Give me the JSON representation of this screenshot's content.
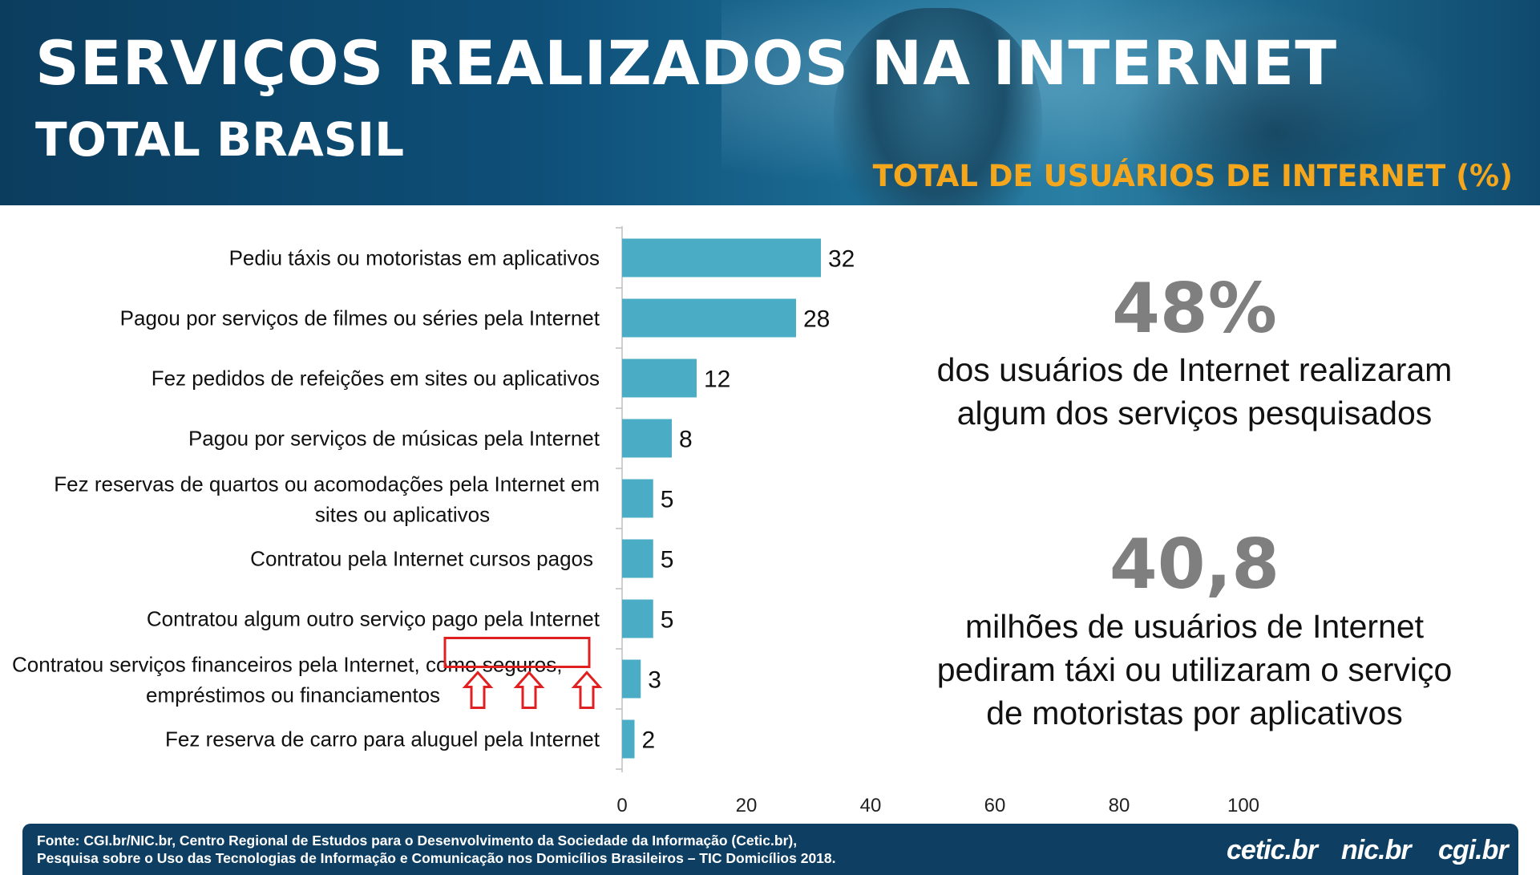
{
  "header": {
    "title": "SERVIÇOS REALIZADOS NA INTERNET",
    "subtitle": "TOTAL BRASIL",
    "chart_label": "TOTAL DE USUÁRIOS DE INTERNET (%)"
  },
  "chart_data": {
    "type": "bar",
    "orientation": "horizontal",
    "title": "",
    "xlabel": "",
    "ylabel": "",
    "xlim": [
      0,
      100
    ],
    "xticks": [
      0,
      20,
      40,
      60,
      80,
      100
    ],
    "categories": [
      "Pediu táxis ou motoristas em aplicativos",
      "Pagou por serviços de filmes ou séries pela Internet",
      "Fez pedidos de refeições em sites ou aplicativos",
      "Pagou por serviços de músicas pela Internet",
      "Fez reservas de quartos ou acomodações pela Internet em sites ou aplicativos",
      "Contratou pela Internet cursos pagos",
      "Contratou algum outro serviço pago pela Internet",
      "Contratou serviços financeiros pela Internet, como seguros, empréstimos ou financiamentos",
      "Fez reserva de carro para aluguel pela Internet"
    ],
    "values": [
      32,
      28,
      12,
      8,
      5,
      5,
      5,
      3,
      2
    ],
    "bar_color": "#4bacc6",
    "highlight": "como seguros",
    "highlight_color": "#e02020"
  },
  "stats": [
    {
      "value": "48%",
      "text_lines": [
        "dos usuários de Internet realizaram",
        "algum dos serviços pesquisados"
      ]
    },
    {
      "value": "40,8",
      "text_lines": [
        "milhões de usuários de Internet",
        "pediram táxi ou utilizaram o serviço",
        "de motoristas por aplicativos"
      ]
    }
  ],
  "footer": {
    "source_lines": [
      "Fonte: CGI.br/NIC.br, Centro Regional de Estudos para o Desenvolvimento da Sociedade da Informação (Cetic.br),",
      "Pesquisa sobre o Uso das Tecnologias de Informação e Comunicação nos Domicílios Brasileiros – TIC Domicílios 2018."
    ],
    "logos": [
      "cetic.br",
      "nic.br",
      "cgi.br"
    ]
  }
}
